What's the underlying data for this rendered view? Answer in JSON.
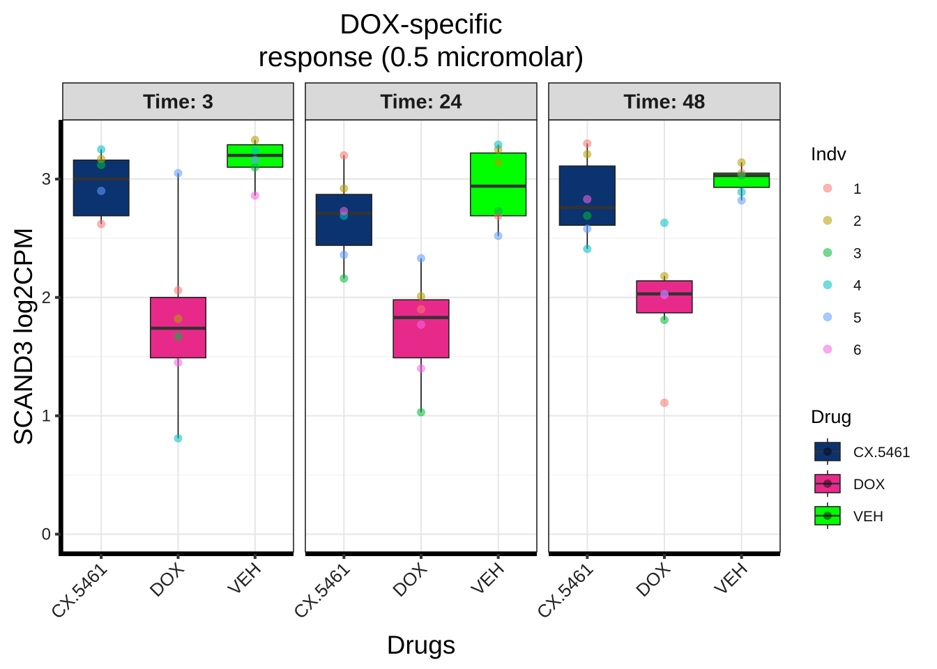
{
  "chart_data": {
    "type": "box",
    "title": [
      "DOX-specific",
      "response (0.5 micromolar)"
    ],
    "xlabel": "Drugs",
    "ylabel": "SCAND3  log2CPM",
    "ylim": [
      -0.15,
      3.5
    ],
    "yticks": [
      0,
      1,
      2,
      3
    ],
    "categories": [
      "CX.5461",
      "DOX",
      "VEH"
    ],
    "grid": true,
    "legend_position": "right",
    "facets": [
      {
        "label": "Time: 3",
        "boxes": [
          {
            "drug": "CX.5461",
            "q1": 2.69,
            "median": 3.0,
            "q3": 3.16,
            "lower": 2.62,
            "upper": 3.25
          },
          {
            "drug": "DOX",
            "q1": 1.49,
            "median": 1.74,
            "q3": 2.0,
            "lower": 0.81,
            "upper": 3.05
          },
          {
            "drug": "VEH",
            "q1": 3.1,
            "median": 3.2,
            "q3": 3.29,
            "lower": 2.86,
            "upper": 3.33
          }
        ],
        "points": [
          {
            "drug": "CX.5461",
            "indv": "1",
            "value": 2.62
          },
          {
            "drug": "CX.5461",
            "indv": "2",
            "value": 3.17
          },
          {
            "drug": "CX.5461",
            "indv": "3",
            "value": 3.12
          },
          {
            "drug": "CX.5461",
            "indv": "4",
            "value": 3.25
          },
          {
            "drug": "CX.5461",
            "indv": "5",
            "value": 2.9
          },
          {
            "drug": "DOX",
            "indv": "1",
            "value": 2.06
          },
          {
            "drug": "DOX",
            "indv": "2",
            "value": 1.82
          },
          {
            "drug": "DOX",
            "indv": "3",
            "value": 1.67
          },
          {
            "drug": "DOX",
            "indv": "4",
            "value": 0.81
          },
          {
            "drug": "DOX",
            "indv": "5",
            "value": 3.05
          },
          {
            "drug": "DOX",
            "indv": "6",
            "value": 1.45
          },
          {
            "drug": "VEH",
            "indv": "2",
            "value": 3.33
          },
          {
            "drug": "VEH",
            "indv": "3",
            "value": 3.1
          },
          {
            "drug": "VEH",
            "indv": "4",
            "value": 3.24
          },
          {
            "drug": "VEH",
            "indv": "5",
            "value": 3.16
          },
          {
            "drug": "VEH",
            "indv": "6",
            "value": 2.86
          }
        ]
      },
      {
        "label": "Time: 24",
        "boxes": [
          {
            "drug": "CX.5461",
            "q1": 2.44,
            "median": 2.71,
            "q3": 2.87,
            "lower": 2.16,
            "upper": 3.2
          },
          {
            "drug": "DOX",
            "q1": 1.49,
            "median": 1.83,
            "q3": 1.98,
            "lower": 1.03,
            "upper": 2.33
          },
          {
            "drug": "VEH",
            "q1": 2.69,
            "median": 2.94,
            "q3": 3.22,
            "lower": 2.52,
            "upper": 3.29
          }
        ],
        "points": [
          {
            "drug": "CX.5461",
            "indv": "1",
            "value": 3.2
          },
          {
            "drug": "CX.5461",
            "indv": "2",
            "value": 2.92
          },
          {
            "drug": "CX.5461",
            "indv": "3",
            "value": 2.16
          },
          {
            "drug": "CX.5461",
            "indv": "4",
            "value": 2.69
          },
          {
            "drug": "CX.5461",
            "indv": "5",
            "value": 2.36
          },
          {
            "drug": "CX.5461",
            "indv": "6",
            "value": 2.73
          },
          {
            "drug": "DOX",
            "indv": "1",
            "value": 1.9
          },
          {
            "drug": "DOX",
            "indv": "2",
            "value": 2.01
          },
          {
            "drug": "DOX",
            "indv": "3",
            "value": 1.03
          },
          {
            "drug": "DOX",
            "indv": "5",
            "value": 2.33
          },
          {
            "drug": "DOX",
            "indv": "6",
            "value": 1.4
          },
          {
            "drug": "DOX",
            "indv": "6",
            "value": 1.77
          },
          {
            "drug": "VEH",
            "indv": "1",
            "value": 2.69
          },
          {
            "drug": "VEH",
            "indv": "2",
            "value": 3.25
          },
          {
            "drug": "VEH",
            "indv": "2",
            "value": 3.14
          },
          {
            "drug": "VEH",
            "indv": "3",
            "value": 2.73
          },
          {
            "drug": "VEH",
            "indv": "4",
            "value": 3.29
          },
          {
            "drug": "VEH",
            "indv": "5",
            "value": 2.52
          }
        ]
      },
      {
        "label": "Time: 48",
        "boxes": [
          {
            "drug": "CX.5461",
            "q1": 2.61,
            "median": 2.76,
            "q3": 3.11,
            "lower": 2.41,
            "upper": 3.3
          },
          {
            "drug": "DOX",
            "q1": 1.87,
            "median": 2.03,
            "q3": 2.14,
            "lower": 1.81,
            "upper": 2.18
          },
          {
            "drug": "VEH",
            "q1": 2.93,
            "median": 3.03,
            "q3": 3.05,
            "lower": 2.82,
            "upper": 3.14
          }
        ],
        "points": [
          {
            "drug": "CX.5461",
            "indv": "1",
            "value": 3.3
          },
          {
            "drug": "CX.5461",
            "indv": "2",
            "value": 3.21
          },
          {
            "drug": "CX.5461",
            "indv": "3",
            "value": 2.69
          },
          {
            "drug": "CX.5461",
            "indv": "4",
            "value": 2.41
          },
          {
            "drug": "CX.5461",
            "indv": "5",
            "value": 2.58
          },
          {
            "drug": "CX.5461",
            "indv": "6",
            "value": 2.83
          },
          {
            "drug": "DOX",
            "indv": "1",
            "value": 1.11
          },
          {
            "drug": "DOX",
            "indv": "2",
            "value": 2.18
          },
          {
            "drug": "DOX",
            "indv": "3",
            "value": 1.81
          },
          {
            "drug": "DOX",
            "indv": "4",
            "value": 2.63
          },
          {
            "drug": "DOX",
            "indv": "5",
            "value": 2.03
          },
          {
            "drug": "DOX",
            "indv": "6",
            "value": 2.02
          },
          {
            "drug": "VEH",
            "indv": "1",
            "value": 3.05
          },
          {
            "drug": "VEH",
            "indv": "2",
            "value": 3.14
          },
          {
            "drug": "VEH",
            "indv": "3",
            "value": 3.03
          },
          {
            "drug": "VEH",
            "indv": "4",
            "value": 2.89
          },
          {
            "drug": "VEH",
            "indv": "5",
            "value": 2.82
          }
        ]
      }
    ],
    "legends": {
      "indv": {
        "title": "Indv",
        "items": [
          {
            "label": "1",
            "color": "#F8766D"
          },
          {
            "label": "2",
            "color": "#B79F00"
          },
          {
            "label": "3",
            "color": "#00BA38"
          },
          {
            "label": "4",
            "color": "#00BFC4"
          },
          {
            "label": "5",
            "color": "#619CFF"
          },
          {
            "label": "6",
            "color": "#F564E3"
          }
        ]
      },
      "drug": {
        "title": "Drug",
        "items": [
          {
            "label": "CX.5461",
            "color": "#0B3370"
          },
          {
            "label": "DOX",
            "color": "#E72A8A"
          },
          {
            "label": "VEH",
            "color": "#00FF00"
          }
        ]
      }
    }
  }
}
